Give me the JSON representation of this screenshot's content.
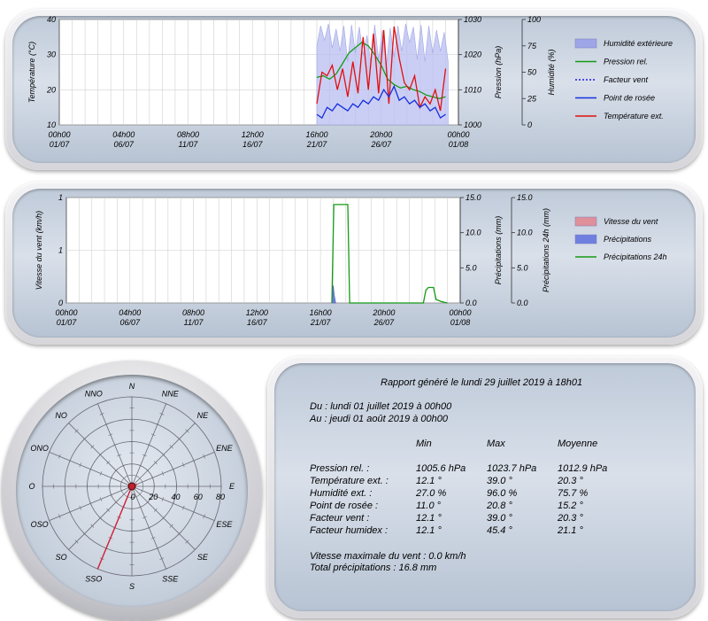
{
  "chart_data": [
    {
      "type": "line",
      "x_ticks": [
        {
          "l1": "00h00",
          "l2": "01/07"
        },
        {
          "l1": "04h00",
          "l2": "06/07"
        },
        {
          "l1": "08h00",
          "l2": "11/07"
        },
        {
          "l1": "12h00",
          "l2": "16/07"
        },
        {
          "l1": "16h00",
          "l2": "21/07"
        },
        {
          "l1": "20h00",
          "l2": "26/07"
        },
        {
          "l1": "00h00",
          "l2": "01/08"
        }
      ],
      "y_left": {
        "label": "Température (°C)",
        "ticks": [
          "10",
          "20",
          "30",
          "40"
        ],
        "range": [
          10,
          40
        ]
      },
      "y_right1": {
        "label": "Pression (hPa)",
        "ticks": [
          "1000",
          "1010",
          "1020",
          "1030"
        ],
        "range": [
          1000,
          1030
        ]
      },
      "y_right2": {
        "label": "Humidité (%)",
        "ticks": [
          "0",
          "25",
          "50",
          "75",
          "100"
        ],
        "range": [
          0,
          100
        ]
      },
      "legend": [
        {
          "label": "Humidité extérieure",
          "color": "#9ea6e8",
          "kind": "fill"
        },
        {
          "label": "Pression rel.",
          "color": "#159a15",
          "kind": "line"
        },
        {
          "label": "Facteur vent",
          "color": "#1a1ae6",
          "kind": "dotted"
        },
        {
          "label": "Point de rosée",
          "color": "#1530e0",
          "kind": "line"
        },
        {
          "label": "Température ext.",
          "color": "#e01010",
          "kind": "line"
        }
      ],
      "series": [
        {
          "name": "Humidité extérieure",
          "axis": "humidity",
          "x": [
            20.0,
            20.3,
            20.6,
            20.9,
            21.2,
            21.5,
            21.8,
            22.1,
            22.4,
            22.7,
            23.0,
            23.3,
            23.6,
            23.9,
            24.2,
            24.5,
            24.8,
            25.1,
            25.4,
            25.7,
            26.0,
            26.3,
            26.6,
            26.9,
            27.2,
            27.5,
            27.8,
            28.1,
            28.4,
            28.7,
            29.0,
            29.3,
            29.6,
            29.9,
            30.2
          ],
          "y": [
            75,
            94,
            80,
            96,
            73,
            91,
            70,
            94,
            60,
            95,
            68,
            93,
            66,
            85,
            58,
            95,
            62,
            90,
            55,
            92,
            64,
            94,
            70,
            96,
            78,
            93,
            62,
            95,
            60,
            94,
            68,
            90,
            70,
            88,
            60
          ]
        },
        {
          "name": "Pression rel.",
          "axis": "pressure",
          "x": [
            20.0,
            20.5,
            21.0,
            21.5,
            22.0,
            22.5,
            23.0,
            23.5,
            24.0,
            24.5,
            25.0,
            25.5,
            26.0,
            26.5,
            27.0,
            27.5,
            28.0,
            28.5,
            29.0,
            29.5,
            30.0
          ],
          "y": [
            1013.5,
            1014.0,
            1013.0,
            1014.5,
            1017.5,
            1020.5,
            1022.0,
            1023.5,
            1022.5,
            1020.0,
            1017.0,
            1013.0,
            1011.5,
            1010.5,
            1011.0,
            1010.0,
            1009.5,
            1008.5,
            1008.0,
            1007.5,
            1008.0
          ]
        },
        {
          "name": "Température ext.",
          "axis": "temp",
          "x": [
            20.0,
            20.4,
            20.8,
            21.2,
            21.6,
            22.0,
            22.4,
            22.8,
            23.2,
            23.6,
            24.0,
            24.4,
            24.8,
            25.2,
            25.6,
            26.0,
            26.4,
            26.8,
            27.2,
            27.6,
            28.0,
            28.4,
            28.8,
            29.2,
            29.6,
            30.0
          ],
          "y": [
            16,
            25,
            24,
            27,
            20,
            26,
            18,
            28,
            19,
            35,
            20,
            36,
            19,
            37,
            16,
            38,
            29,
            22,
            20,
            24,
            15,
            18,
            16,
            20,
            14,
            26
          ]
        },
        {
          "name": "Point de rosée",
          "axis": "temp",
          "x": [
            20.0,
            20.4,
            20.8,
            21.2,
            21.6,
            22.0,
            22.4,
            22.8,
            23.2,
            23.6,
            24.0,
            24.4,
            24.8,
            25.2,
            25.6,
            26.0,
            26.4,
            26.8,
            27.2,
            27.6,
            28.0,
            28.4,
            28.8,
            29.2,
            29.6,
            30.0
          ],
          "y": [
            13,
            12,
            15,
            14,
            16,
            15,
            14,
            16,
            15,
            17,
            16,
            18,
            17,
            20,
            18,
            21,
            17,
            18,
            16,
            17,
            15,
            16,
            14,
            15,
            12,
            13
          ]
        }
      ]
    },
    {
      "type": "line",
      "x_ticks": [
        {
          "l1": "00h00",
          "l2": "01/07"
        },
        {
          "l1": "04h00",
          "l2": "06/07"
        },
        {
          "l1": "08h00",
          "l2": "11/07"
        },
        {
          "l1": "12h00",
          "l2": "16/07"
        },
        {
          "l1": "16h00",
          "l2": "21/07"
        },
        {
          "l1": "20h00",
          "l2": "26/07"
        },
        {
          "l1": "00h00",
          "l2": "01/08"
        }
      ],
      "y_left": {
        "label": "Vitesse du vent (km/h)",
        "ticks": [
          "0",
          "1",
          "1"
        ],
        "range": [
          0,
          1
        ]
      },
      "y_right1": {
        "label": "Précipitations (mm)",
        "ticks": [
          "0.0",
          "5.0",
          "10.0",
          "15.0"
        ],
        "range": [
          0,
          15
        ]
      },
      "y_right2": {
        "label": "Précipitations 24h (mm)",
        "ticks": [
          "0.0",
          "5.0",
          "10.0",
          "15.0"
        ],
        "range": [
          0,
          15
        ]
      },
      "legend": [
        {
          "label": "Vitesse du vent",
          "color": "#e0909a",
          "kind": "fill"
        },
        {
          "label": "Précipitations",
          "color": "#6f7fe0",
          "kind": "fill"
        },
        {
          "label": "Précipitations 24h",
          "color": "#159a15",
          "kind": "line"
        }
      ],
      "series": [
        {
          "name": "Précipitations",
          "axis": "rain",
          "x": [
            20.9,
            21.0,
            21.1,
            21.2
          ],
          "y": [
            0,
            2.5,
            1.0,
            0
          ]
        },
        {
          "name": "Précipitations 24h",
          "axis": "rain",
          "x": [
            20.9,
            21.05,
            21.15,
            22.0,
            22.15,
            22.3,
            28.1,
            28.3,
            28.5,
            28.9,
            29.1,
            29.5,
            30.0
          ],
          "y": [
            0,
            14.0,
            14.0,
            14.0,
            14.0,
            0,
            0,
            1.8,
            2.2,
            2.2,
            0.5,
            0.2,
            0
          ]
        }
      ]
    },
    {
      "type": "scatter",
      "polar": true,
      "directions": [
        "N",
        "NNE",
        "NE",
        "ENE",
        "E",
        "ESE",
        "SE",
        "SSE",
        "S",
        "SSO",
        "SO",
        "OSO",
        "O",
        "ONO",
        "NO",
        "NNO"
      ],
      "rings": [
        "0",
        "20",
        "40",
        "60",
        "80"
      ],
      "r_max": 80,
      "samples": [
        {
          "direction": "SSO",
          "value": 80
        },
        {
          "direction": "ENE",
          "value": 5
        }
      ]
    }
  ],
  "report": {
    "title": "Rapport généré le lundi 29 juillet 2019 à 18h01",
    "from": "Du : lundi 01 juillet 2019 à 00h00",
    "to": "Au : jeudi 01 août 2019 à 00h00",
    "headers": [
      "Min",
      "Max",
      "Moyenne"
    ],
    "rows": [
      {
        "label": "Pression rel. :",
        "min": "1005.6 hPa",
        "max": "1023.7 hPa",
        "avg": "1012.9 hPa"
      },
      {
        "label": "Température ext. :",
        "min": "12.1 °",
        "max": "39.0 °",
        "avg": "20.3 °"
      },
      {
        "label": "Humidité ext. :",
        "min": "27.0 %",
        "max": "96.0 %",
        "avg": "75.7 %"
      },
      {
        "label": "Point de rosée :",
        "min": "11.0 °",
        "max": "20.8 °",
        "avg": "15.2 °"
      },
      {
        "label": "Facteur vent :",
        "min": "12.1 °",
        "max": "39.0 °",
        "avg": "20.3 °"
      },
      {
        "label": "Facteur humidex :",
        "min": "12.1 °",
        "max": "45.4 °",
        "avg": "21.1 °"
      }
    ],
    "wind_max": "Vitesse maximale du vent : 0.0 km/h",
    "rain_total": "Total précipitations : 16.8 mm"
  }
}
